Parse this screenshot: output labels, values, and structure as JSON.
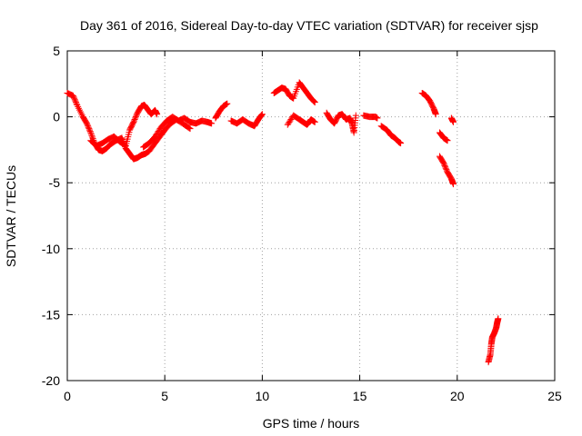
{
  "chart_data": {
    "type": "scatter",
    "title": "Day 361 of 2016, Sidereal Day-to-day VTEC variation (SDTVAR) for receiver sjsp",
    "xlabel": "GPS time / hours",
    "ylabel": "SDTVAR / TECUs",
    "xlim": [
      0,
      25
    ],
    "ylim": [
      -20,
      5
    ],
    "xticks": [
      "0",
      "5",
      "10",
      "15",
      "20",
      "25"
    ],
    "yticks": [
      "5",
      "0",
      "-5",
      "-10",
      "-15",
      "-20"
    ],
    "grid": true,
    "legend": "none",
    "marker": "+",
    "color": "#ff0000",
    "series": [
      {
        "name": "SDTVAR",
        "segments": [
          [
            [
              0.0,
              1.8
            ],
            [
              0.3,
              1.6
            ],
            [
              0.5,
              0.9
            ],
            [
              0.8,
              0.0
            ],
            [
              1.0,
              -0.5
            ],
            [
              1.2,
              -1.2
            ],
            [
              1.4,
              -2.0
            ],
            [
              1.6,
              -2.5
            ],
            [
              1.8,
              -2.6
            ],
            [
              2.0,
              -2.4
            ],
            [
              2.2,
              -2.1
            ],
            [
              2.5,
              -1.8
            ],
            [
              2.8,
              -1.6
            ],
            [
              3.0,
              -2.4
            ],
            [
              3.2,
              -2.8
            ],
            [
              3.4,
              -3.2
            ],
            [
              3.6,
              -3.1
            ],
            [
              3.8,
              -2.9
            ],
            [
              4.0,
              -2.8
            ],
            [
              4.2,
              -2.6
            ],
            [
              4.5,
              -2.0
            ],
            [
              4.8,
              -1.4
            ],
            [
              5.0,
              -1.0
            ],
            [
              5.3,
              -0.5
            ],
            [
              5.6,
              -0.2
            ],
            [
              6.0,
              -0.6
            ],
            [
              6.3,
              -0.9
            ]
          ],
          [
            [
              1.2,
              -1.8
            ],
            [
              1.5,
              -2.2
            ],
            [
              1.8,
              -2.0
            ],
            [
              2.1,
              -1.7
            ],
            [
              2.4,
              -1.5
            ],
            [
              2.7,
              -1.9
            ],
            [
              3.0,
              -2.2
            ],
            [
              3.2,
              -1.0
            ],
            [
              3.4,
              -0.4
            ],
            [
              3.6,
              0.3
            ],
            [
              3.8,
              0.8
            ],
            [
              3.95,
              0.9
            ],
            [
              4.1,
              0.6
            ],
            [
              4.3,
              0.2
            ],
            [
              4.5,
              0.5
            ],
            [
              4.6,
              0.2
            ]
          ],
          [
            [
              3.9,
              -2.3
            ],
            [
              4.2,
              -2.0
            ],
            [
              4.5,
              -1.5
            ],
            [
              4.8,
              -0.8
            ],
            [
              5.1,
              -0.3
            ],
            [
              5.4,
              0.0
            ],
            [
              5.7,
              -0.3
            ],
            [
              6.0,
              -0.1
            ],
            [
              6.3,
              -0.4
            ],
            [
              6.6,
              -0.5
            ],
            [
              6.9,
              -0.3
            ],
            [
              7.2,
              -0.4
            ],
            [
              7.4,
              -0.5
            ]
          ],
          [
            [
              7.6,
              -0.1
            ],
            [
              7.8,
              0.4
            ],
            [
              8.0,
              0.8
            ],
            [
              8.2,
              1.0
            ]
          ],
          [
            [
              8.4,
              -0.3
            ],
            [
              8.7,
              -0.5
            ],
            [
              9.0,
              -0.2
            ],
            [
              9.3,
              -0.5
            ],
            [
              9.6,
              -0.7
            ],
            [
              9.8,
              -0.2
            ],
            [
              10.0,
              0.2
            ]
          ],
          [
            [
              10.6,
              1.8
            ],
            [
              10.8,
              2.0
            ],
            [
              11.0,
              2.2
            ],
            [
              11.2,
              2.1
            ],
            [
              11.4,
              1.6
            ],
            [
              11.6,
              1.4
            ],
            [
              11.9,
              2.6
            ],
            [
              12.1,
              2.2
            ],
            [
              12.3,
              1.8
            ],
            [
              12.5,
              1.4
            ],
            [
              12.7,
              1.1
            ]
          ],
          [
            [
              11.3,
              -0.6
            ],
            [
              11.6,
              0.1
            ],
            [
              11.9,
              -0.2
            ],
            [
              12.1,
              -0.4
            ],
            [
              12.3,
              -0.6
            ],
            [
              12.5,
              -0.2
            ],
            [
              12.7,
              -0.4
            ]
          ],
          [
            [
              13.3,
              0.3
            ],
            [
              13.5,
              -0.2
            ],
            [
              13.7,
              -0.5
            ],
            [
              13.9,
              0.1
            ],
            [
              14.1,
              0.2
            ],
            [
              14.3,
              -0.2
            ],
            [
              14.5,
              -0.1
            ],
            [
              14.6,
              -0.5
            ],
            [
              14.7,
              -1.2
            ],
            [
              14.8,
              0.1
            ]
          ],
          [
            [
              15.2,
              0.1
            ],
            [
              15.5,
              0.0
            ],
            [
              15.8,
              0.0
            ],
            [
              15.9,
              -0.1
            ]
          ],
          [
            [
              16.1,
              -0.7
            ],
            [
              16.4,
              -1.0
            ],
            [
              16.6,
              -1.4
            ],
            [
              16.8,
              -1.6
            ],
            [
              17.0,
              -1.9
            ],
            [
              17.1,
              -2.0
            ]
          ],
          [
            [
              18.2,
              1.8
            ],
            [
              18.4,
              1.6
            ],
            [
              18.6,
              1.2
            ],
            [
              18.8,
              0.6
            ],
            [
              18.9,
              0.2
            ]
          ],
          [
            [
              19.1,
              -1.2
            ],
            [
              19.3,
              -1.6
            ],
            [
              19.5,
              -1.8
            ]
          ],
          [
            [
              19.1,
              -3.0
            ],
            [
              19.3,
              -3.5
            ],
            [
              19.5,
              -4.2
            ],
            [
              19.7,
              -4.7
            ],
            [
              19.8,
              -5.1
            ]
          ],
          [
            [
              19.7,
              -0.1
            ],
            [
              19.8,
              -0.4
            ]
          ],
          [
            [
              21.6,
              -18.6
            ],
            [
              21.7,
              -18.0
            ],
            [
              21.75,
              -17.2
            ],
            [
              21.8,
              -16.7
            ],
            [
              21.9,
              -16.4
            ],
            [
              22.0,
              -16.0
            ],
            [
              22.05,
              -15.6
            ],
            [
              22.1,
              -15.3
            ]
          ]
        ]
      }
    ]
  }
}
